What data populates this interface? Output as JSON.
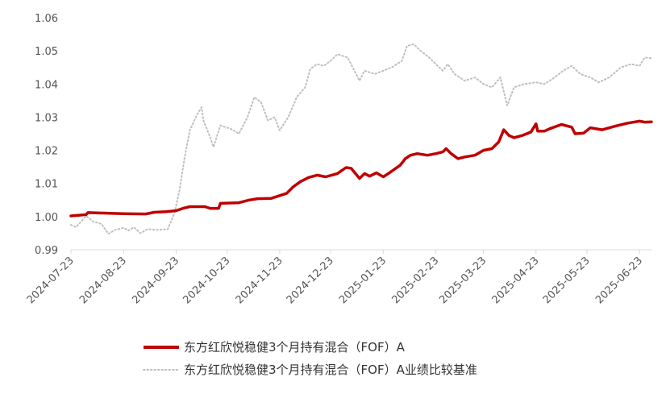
{
  "chart_data": {
    "type": "line",
    "title": "",
    "xlabel": "",
    "ylabel": "",
    "ylim": [
      0.99,
      1.06
    ],
    "yticks": [
      "0.99",
      "1.00",
      "1.01",
      "1.02",
      "1.03",
      "1.04",
      "1.05",
      "1.06"
    ],
    "xticks": [
      "2024-07-23",
      "2024-08-23",
      "2024-09-23",
      "2024-10-23",
      "2024-11-23",
      "2024-12-23",
      "2025-01-23",
      "2025-02-23",
      "2025-03-23",
      "2025-04-23",
      "2025-05-23",
      "2025-06-23"
    ],
    "xrange": [
      "2024-07-23",
      "2025-06-30"
    ],
    "grid": false,
    "legend_position": "bottom",
    "series": [
      {
        "name": "东方红欣悦稳健3个月持有混合（FOF）A",
        "color": "#c00000",
        "style": "solid",
        "points": [
          [
            "2024-07-23",
            1.0002
          ],
          [
            "2024-08-01",
            1.0006
          ],
          [
            "2024-08-02",
            1.0012
          ],
          [
            "2024-08-15",
            1.001
          ],
          [
            "2024-08-23",
            1.0009
          ],
          [
            "2024-09-05",
            1.0008
          ],
          [
            "2024-09-10",
            1.0013
          ],
          [
            "2024-09-17",
            1.0015
          ],
          [
            "2024-09-23",
            1.0018
          ],
          [
            "2024-09-27",
            1.0025
          ],
          [
            "2024-10-01",
            1.003
          ],
          [
            "2024-10-10",
            1.003
          ],
          [
            "2024-10-13",
            1.0025
          ],
          [
            "2024-10-18",
            1.0025
          ],
          [
            "2024-10-19",
            1.004
          ],
          [
            "2024-10-30",
            1.0042
          ],
          [
            "2024-11-05",
            1.005
          ],
          [
            "2024-11-10",
            1.0054
          ],
          [
            "2024-11-18",
            1.0055
          ],
          [
            "2024-11-27",
            1.007
          ],
          [
            "2024-12-01",
            1.009
          ],
          [
            "2024-12-05",
            1.0105
          ],
          [
            "2024-12-10",
            1.0118
          ],
          [
            "2024-12-15",
            1.0125
          ],
          [
            "2024-12-20",
            1.012
          ],
          [
            "2024-12-27",
            1.013
          ],
          [
            "2025-01-01",
            1.0148
          ],
          [
            "2025-01-04",
            1.0146
          ],
          [
            "2025-01-09",
            1.0115
          ],
          [
            "2025-01-12",
            1.013
          ],
          [
            "2025-01-15",
            1.0122
          ],
          [
            "2025-01-19",
            1.0132
          ],
          [
            "2025-01-23",
            1.012
          ],
          [
            "2025-01-26",
            1.013
          ],
          [
            "2025-02-02",
            1.0155
          ],
          [
            "2025-02-05",
            1.0175
          ],
          [
            "2025-02-08",
            1.0185
          ],
          [
            "2025-02-12",
            1.019
          ],
          [
            "2025-02-18",
            1.0185
          ],
          [
            "2025-02-23",
            1.019
          ],
          [
            "2025-02-27",
            1.0195
          ],
          [
            "2025-03-01",
            1.0205
          ],
          [
            "2025-03-04",
            1.019
          ],
          [
            "2025-03-08",
            1.0175
          ],
          [
            "2025-03-12",
            1.018
          ],
          [
            "2025-03-18",
            1.0185
          ],
          [
            "2025-03-23",
            1.02
          ],
          [
            "2025-03-28",
            1.0205
          ],
          [
            "2025-04-01",
            1.0225
          ],
          [
            "2025-04-04",
            1.0262
          ],
          [
            "2025-04-07",
            1.0245
          ],
          [
            "2025-04-10",
            1.0238
          ],
          [
            "2025-04-15",
            1.0245
          ],
          [
            "2025-04-20",
            1.0255
          ],
          [
            "2025-04-23",
            1.028
          ],
          [
            "2025-04-24",
            1.0258
          ],
          [
            "2025-04-28",
            1.0258
          ],
          [
            "2025-05-01",
            1.0265
          ],
          [
            "2025-05-08",
            1.0278
          ],
          [
            "2025-05-14",
            1.027
          ],
          [
            "2025-05-16",
            1.025
          ],
          [
            "2025-05-21",
            1.0252
          ],
          [
            "2025-05-25",
            1.0268
          ],
          [
            "2025-06-01",
            1.0262
          ],
          [
            "2025-06-08",
            1.0272
          ],
          [
            "2025-06-16",
            1.0282
          ],
          [
            "2025-06-23",
            1.0288
          ],
          [
            "2025-06-26",
            1.0285
          ],
          [
            "2025-06-30",
            1.0286
          ]
        ]
      },
      {
        "name": "东方红欣悦稳健3个月持有混合（FOF）A业绩比较基准",
        "color": "#bfbfbf",
        "style": "dotted",
        "points": [
          [
            "2024-07-23",
            0.9975
          ],
          [
            "2024-07-26",
            0.9968
          ],
          [
            "2024-07-29",
            0.9985
          ],
          [
            "2024-08-01",
            1.0002
          ],
          [
            "2024-08-05",
            0.9985
          ],
          [
            "2024-08-10",
            0.9978
          ],
          [
            "2024-08-14",
            0.9948
          ],
          [
            "2024-08-18",
            0.996
          ],
          [
            "2024-08-23",
            0.9966
          ],
          [
            "2024-08-26",
            0.9958
          ],
          [
            "2024-08-29",
            0.9968
          ],
          [
            "2024-09-02",
            0.995
          ],
          [
            "2024-09-06",
            0.9962
          ],
          [
            "2024-09-12",
            0.996
          ],
          [
            "2024-09-18",
            0.9962
          ],
          [
            "2024-09-22",
            1.001
          ],
          [
            "2024-09-25",
            1.008
          ],
          [
            "2024-09-28",
            1.018
          ],
          [
            "2024-10-01",
            1.026
          ],
          [
            "2024-10-05",
            1.0305
          ],
          [
            "2024-10-08",
            1.033
          ],
          [
            "2024-10-09",
            1.029
          ],
          [
            "2024-10-13",
            1.024
          ],
          [
            "2024-10-15",
            1.021
          ],
          [
            "2024-10-19",
            1.0275
          ],
          [
            "2024-10-25",
            1.0265
          ],
          [
            "2024-10-30",
            1.025
          ],
          [
            "2024-11-04",
            1.03
          ],
          [
            "2024-11-08",
            1.036
          ],
          [
            "2024-11-12",
            1.0345
          ],
          [
            "2024-11-16",
            1.029
          ],
          [
            "2024-11-20",
            1.03
          ],
          [
            "2024-11-23",
            1.026
          ],
          [
            "2024-11-28",
            1.03
          ],
          [
            "2024-12-03",
            1.036
          ],
          [
            "2024-12-08",
            1.039
          ],
          [
            "2024-12-11",
            1.0445
          ],
          [
            "2024-12-15",
            1.046
          ],
          [
            "2024-12-19",
            1.0455
          ],
          [
            "2024-12-23",
            1.047
          ],
          [
            "2024-12-27",
            1.049
          ],
          [
            "2025-01-02",
            1.048
          ],
          [
            "2025-01-05",
            1.045
          ],
          [
            "2025-01-09",
            1.041
          ],
          [
            "2025-01-12",
            1.044
          ],
          [
            "2025-01-18",
            1.043
          ],
          [
            "2025-01-23",
            1.044
          ],
          [
            "2025-01-28",
            1.045
          ],
          [
            "2025-02-03",
            1.047
          ],
          [
            "2025-02-06",
            1.0515
          ],
          [
            "2025-02-10",
            1.052
          ],
          [
            "2025-02-14",
            1.05
          ],
          [
            "2025-02-19",
            1.048
          ],
          [
            "2025-02-23",
            1.046
          ],
          [
            "2025-02-27",
            1.044
          ],
          [
            "2025-03-02",
            1.046
          ],
          [
            "2025-03-06",
            1.043
          ],
          [
            "2025-03-12",
            1.041
          ],
          [
            "2025-03-18",
            1.042
          ],
          [
            "2025-03-23",
            1.04
          ],
          [
            "2025-03-28",
            1.039
          ],
          [
            "2025-04-02",
            1.042
          ],
          [
            "2025-04-06",
            1.0335
          ],
          [
            "2025-04-10",
            1.039
          ],
          [
            "2025-04-16",
            1.04
          ],
          [
            "2025-04-23",
            1.0405
          ],
          [
            "2025-04-28",
            1.04
          ],
          [
            "2025-05-04",
            1.042
          ],
          [
            "2025-05-09",
            1.044
          ],
          [
            "2025-05-14",
            1.0455
          ],
          [
            "2025-05-19",
            1.043
          ],
          [
            "2025-05-25",
            1.042
          ],
          [
            "2025-05-30",
            1.0405
          ],
          [
            "2025-06-05",
            1.042
          ],
          [
            "2025-06-12",
            1.045
          ],
          [
            "2025-06-18",
            1.046
          ],
          [
            "2025-06-23",
            1.0455
          ],
          [
            "2025-06-26",
            1.048
          ],
          [
            "2025-06-30",
            1.0478
          ]
        ]
      }
    ]
  }
}
